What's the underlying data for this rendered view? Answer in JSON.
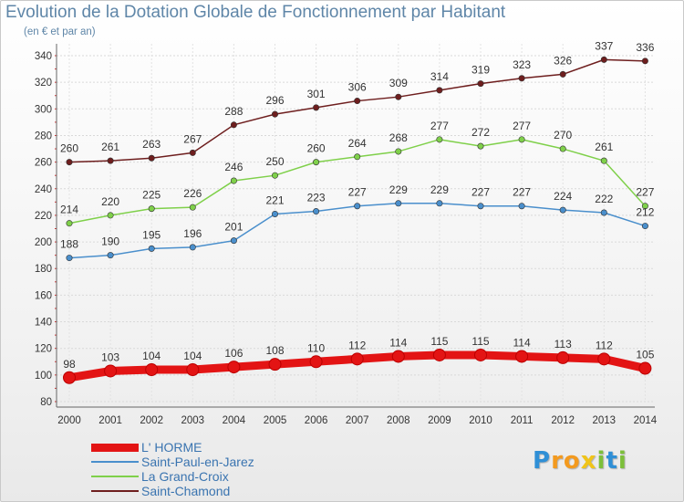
{
  "title": "Evolution de la Dotation Globale de Fonctionnement par Habitant",
  "subtitle": "(en € et par an)",
  "logo": {
    "text": "Proxiti",
    "letters": [
      {
        "ch": "P",
        "color": "#2f8fd6"
      },
      {
        "ch": "r",
        "color": "#f39a1f"
      },
      {
        "ch": "o",
        "color": "#f39a1f"
      },
      {
        "ch": "x",
        "color": "#f0c419"
      },
      {
        "ch": "i",
        "color": "#7cbf3a"
      },
      {
        "ch": "t",
        "color": "#2f8fd6"
      },
      {
        "ch": "i",
        "color": "#7cbf3a"
      }
    ]
  },
  "chart_data": {
    "type": "line",
    "title": "Evolution de la Dotation Globale de Fonctionnement par Habitant",
    "subtitle": "(en € et par an)",
    "xlabel": "",
    "ylabel": "",
    "x": [
      "2000",
      "2001",
      "2002",
      "2003",
      "2004",
      "2005",
      "2006",
      "2007",
      "2008",
      "2009",
      "2010",
      "2011",
      "2012",
      "2013",
      "2014"
    ],
    "ylim": [
      80,
      340
    ],
    "yticks": [
      80,
      100,
      120,
      140,
      160,
      180,
      200,
      220,
      240,
      260,
      280,
      300,
      320,
      340
    ],
    "grid": true,
    "legend_position": "bottom-left",
    "series": [
      {
        "name": "L' HORME",
        "color": "#e31414",
        "values": [
          98,
          103,
          104,
          104,
          106,
          108,
          110,
          112,
          114,
          115,
          115,
          114,
          113,
          112,
          105
        ]
      },
      {
        "name": "Saint-Paul-en-Jarez",
        "color": "#4a8fcc",
        "values": [
          188,
          190,
          195,
          196,
          201,
          221,
          223,
          227,
          229,
          229,
          227,
          227,
          224,
          222,
          212
        ]
      },
      {
        "name": "La Grand-Croix",
        "color": "#7fd04a",
        "values": [
          214,
          220,
          225,
          226,
          246,
          250,
          260,
          264,
          268,
          277,
          272,
          277,
          270,
          261,
          227
        ]
      },
      {
        "name": "Saint-Chamond",
        "color": "#6e1e1e",
        "values": [
          260,
          261,
          263,
          267,
          288,
          296,
          301,
          306,
          309,
          314,
          319,
          323,
          326,
          337,
          336
        ]
      }
    ]
  }
}
